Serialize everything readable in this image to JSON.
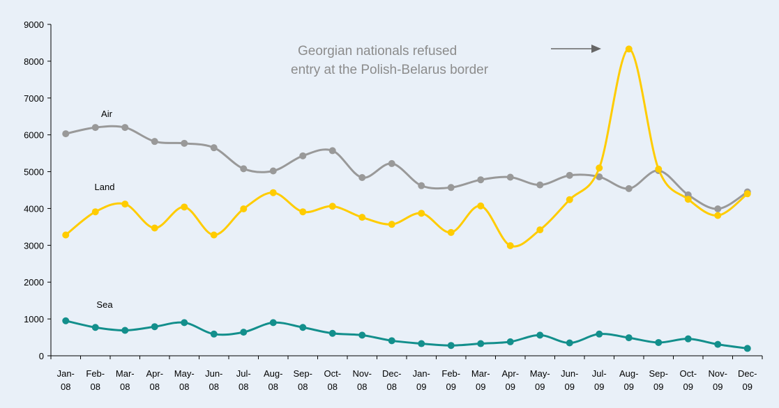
{
  "chart_data": {
    "type": "line",
    "annotation": [
      "Georgian nationals refused",
      "entry at the Polish-Belarus border"
    ],
    "categories": [
      "Jan-08",
      "Feb-08",
      "Mar-08",
      "Apr-08",
      "May-08",
      "Jun-08",
      "Jul-08",
      "Aug-08",
      "Sep-08",
      "Oct-08",
      "Nov-08",
      "Dec-08",
      "Jan-09",
      "Feb-09",
      "Mar-09",
      "Apr-09",
      "May-09",
      "Jun-09",
      "Jul-09",
      "Aug-09",
      "Sep-09",
      "Oct-09",
      "Nov-09",
      "Dec-09"
    ],
    "series": [
      {
        "name": "Air",
        "color": "#999999",
        "values": [
          6030,
          6200,
          6200,
          5820,
          5770,
          5650,
          5080,
          5020,
          5430,
          5570,
          4840,
          5220,
          4620,
          4570,
          4780,
          4850,
          4640,
          4900,
          4860,
          4540,
          5030,
          4370,
          3990,
          4450
        ]
      },
      {
        "name": "Land",
        "color": "#ffcc00",
        "values": [
          3280,
          3910,
          4120,
          3470,
          4040,
          3280,
          3990,
          4430,
          3910,
          4060,
          3760,
          3570,
          3870,
          3350,
          4070,
          2990,
          3420,
          4240,
          5100,
          8330,
          5070,
          4250,
          3810,
          4400
        ]
      },
      {
        "name": "Sea",
        "color": "#138f8c",
        "values": [
          950,
          770,
          690,
          790,
          900,
          590,
          640,
          900,
          770,
          610,
          560,
          410,
          330,
          280,
          330,
          380,
          560,
          350,
          590,
          490,
          360,
          460,
          310,
          200
        ]
      }
    ],
    "ylim": [
      0,
      9000
    ],
    "yticks": [
      0,
      1000,
      2000,
      3000,
      4000,
      5000,
      6000,
      7000,
      8000,
      9000
    ],
    "grid": false
  }
}
